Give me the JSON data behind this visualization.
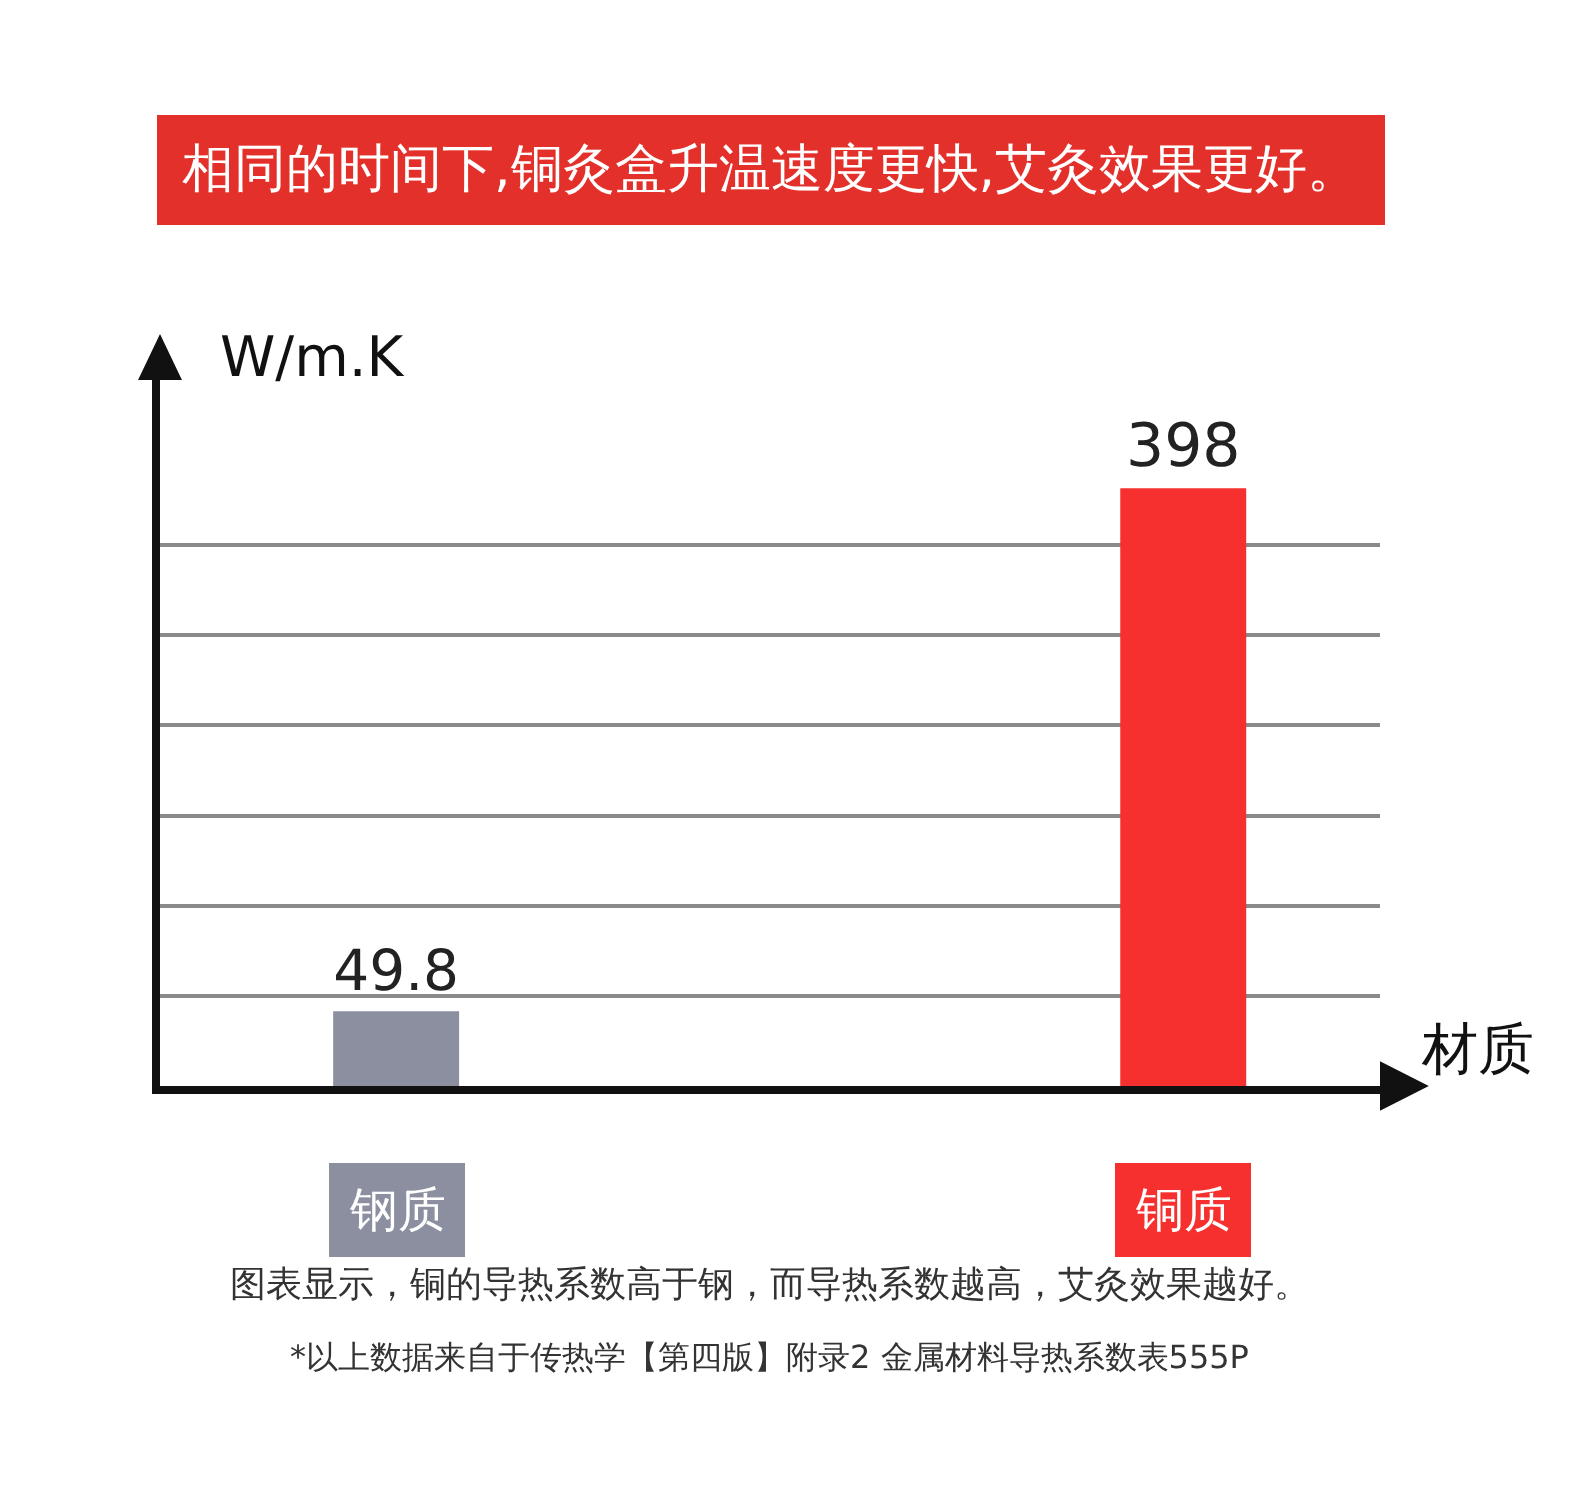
{
  "chart_data": {
    "type": "bar",
    "title": "相同的时间下,铜灸盒升温速度更快,艾灸效果更好。",
    "categories": [
      "钢质",
      "铜质"
    ],
    "values": [
      49.8,
      398
    ],
    "colors": [
      "#8b8fa0",
      "#f5302f"
    ],
    "ylabel": "W/m.K",
    "xlabel": "材质",
    "ylim": [
      0,
      470
    ],
    "yticks": [
      {
        "value": 60,
        "label": null
      },
      {
        "value": 120,
        "label": null
      },
      {
        "value": 180,
        "label": null
      },
      {
        "value": 240,
        "label": null
      },
      {
        "value": 300,
        "label": null
      },
      {
        "value": 360,
        "label": null
      }
    ],
    "grid": "y",
    "data_labels": true,
    "tick_labels": "x",
    "annotations": [
      "图表显示，铜的导热系数高于钢，而导热系数越高，艾灸效果越好。",
      "*以上数据来自于传热学【第四版】附录2 金属材料导热系数表555P"
    ]
  }
}
